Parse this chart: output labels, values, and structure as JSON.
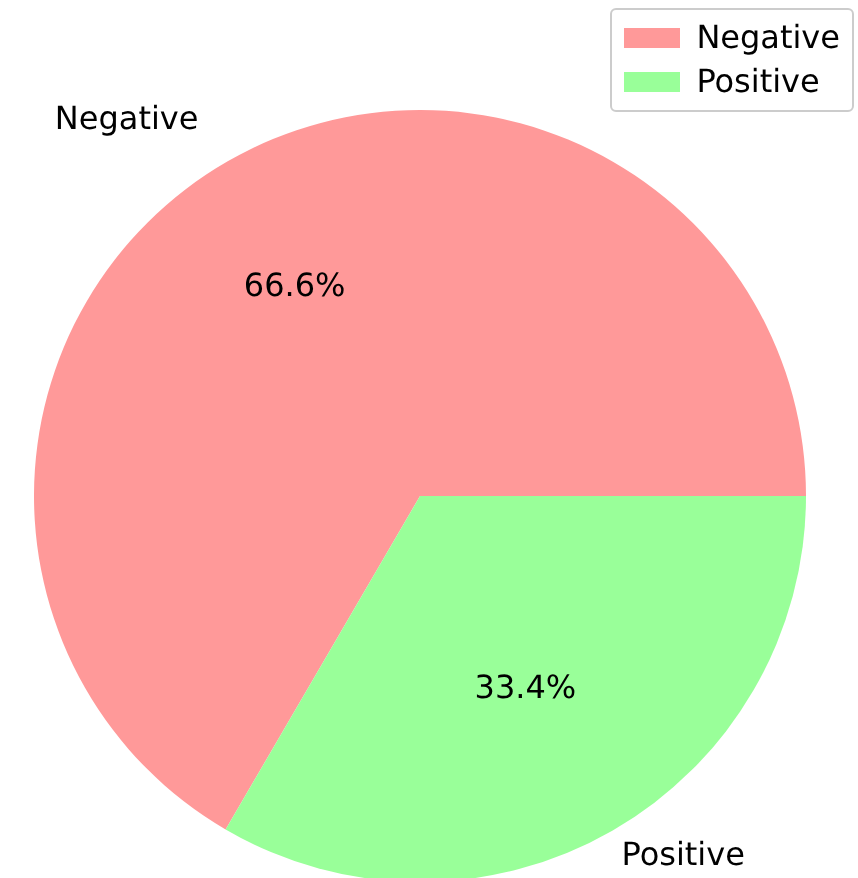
{
  "chart_data": {
    "type": "pie",
    "categories": [
      "Negative",
      "Positive"
    ],
    "values": [
      66.6,
      33.4
    ],
    "colors": [
      "#ff9999",
      "#99ff99"
    ],
    "value_labels": [
      "66.6%",
      "33.4%"
    ],
    "legend": "top right"
  }
}
